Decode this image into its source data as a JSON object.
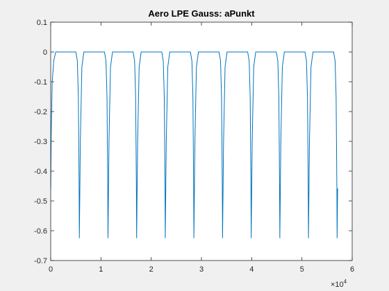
{
  "chart_data": {
    "type": "line",
    "title": "Aero LPE Gauss: aPunkt",
    "xlabel": "",
    "ylabel": "",
    "xlim": [
      0,
      60000
    ],
    "ylim": [
      -0.7,
      0.1
    ],
    "x_ticks": [
      0,
      10000,
      20000,
      30000,
      40000,
      50000,
      60000
    ],
    "x_tick_labels": [
      "0",
      "1",
      "2",
      "3",
      "4",
      "5",
      "6"
    ],
    "x_exponent_label": "×10^4",
    "y_ticks": [
      0.1,
      0,
      -0.1,
      -0.2,
      -0.3,
      -0.4,
      -0.5,
      -0.6,
      -0.7
    ],
    "y_tick_labels": [
      "0.1",
      "0",
      "-0.1",
      "-0.2",
      "-0.3",
      "-0.4",
      "-0.5",
      "-0.6",
      "-0.7"
    ],
    "grid": false,
    "series": [
      {
        "color": "#0072bd",
        "x": [
          0,
          100,
          300,
          600,
          1000,
          5000,
          5300,
          5500,
          5650,
          5700,
          5900,
          6200,
          6600,
          10700,
          11000,
          11200,
          11350,
          11400,
          11600,
          11900,
          12300,
          16400,
          16700,
          16900,
          17050,
          17100,
          17300,
          17600,
          18000,
          22100,
          22400,
          22600,
          22750,
          22800,
          23000,
          23300,
          23700,
          27800,
          28100,
          28300,
          28450,
          28500,
          28700,
          29000,
          29400,
          33500,
          33800,
          34000,
          34150,
          34200,
          34400,
          34700,
          35100,
          39200,
          39500,
          39700,
          39850,
          39900,
          40100,
          40400,
          40800,
          44900,
          45200,
          45400,
          45550,
          45600,
          45800,
          46100,
          46500,
          50600,
          50900,
          51100,
          51250,
          51300,
          51500,
          51800,
          52200,
          56300,
          56600,
          56800,
          56950,
          57000,
          57100,
          57200
        ],
        "y": [
          -0.46,
          -0.28,
          -0.1,
          -0.03,
          0,
          0,
          -0.03,
          -0.15,
          -0.45,
          -0.625,
          -0.3,
          -0.05,
          0,
          0,
          -0.03,
          -0.15,
          -0.45,
          -0.625,
          -0.3,
          -0.05,
          0,
          0,
          -0.03,
          -0.15,
          -0.45,
          -0.625,
          -0.3,
          -0.05,
          0,
          0,
          -0.03,
          -0.15,
          -0.45,
          -0.625,
          -0.3,
          -0.05,
          0,
          0,
          -0.03,
          -0.15,
          -0.45,
          -0.625,
          -0.3,
          -0.05,
          0,
          0,
          -0.03,
          -0.15,
          -0.45,
          -0.625,
          -0.3,
          -0.05,
          0,
          0,
          -0.03,
          -0.15,
          -0.45,
          -0.625,
          -0.3,
          -0.05,
          0,
          0,
          -0.03,
          -0.15,
          -0.45,
          -0.625,
          -0.3,
          -0.05,
          0,
          0,
          -0.03,
          -0.15,
          -0.45,
          -0.625,
          -0.3,
          -0.05,
          0,
          0,
          -0.03,
          -0.15,
          -0.45,
          -0.625,
          -0.46,
          -0.46
        ]
      }
    ]
  }
}
